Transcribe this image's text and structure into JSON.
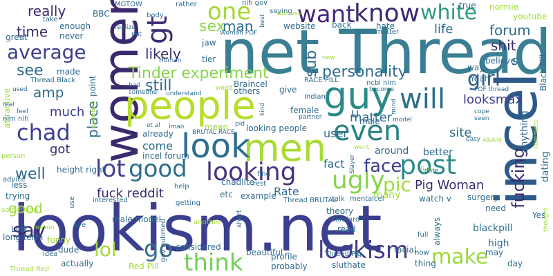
{
  "words": [
    {
      "text": "lookism.net",
      "color": "#3b3f8f"
    },
    {
      "text": "net Thread",
      "color": "#3a7f93"
    },
    {
      "text": "incel",
      "color": "#2e5a8a"
    },
    {
      "text": "women",
      "color": "#3b2a6e"
    },
    {
      "text": "people",
      "color": "#b5de2b"
    },
    {
      "text": "men",
      "color": "#a8db34"
    },
    {
      "text": "guy",
      "color": "#2a8a87"
    },
    {
      "text": "look",
      "color": "#2d6f8e"
    },
    {
      "text": "know",
      "color": "#3b2a6e"
    },
    {
      "text": "want",
      "color": "#46277a"
    },
    {
      "text": "white",
      "color": "#2f9a80"
    },
    {
      "text": "one",
      "color": "#a6d837"
    },
    {
      "text": "good",
      "color": "#2b6d8f"
    },
    {
      "text": "looking",
      "color": "#46337e"
    },
    {
      "text": "post",
      "color": "#2f8b8b"
    },
    {
      "text": "even",
      "color": "#2a8184"
    },
    {
      "text": "will",
      "color": "#2e6e8e"
    },
    {
      "text": "average",
      "color": "#3d3f8c"
    },
    {
      "text": "ugly",
      "color": "#86d549"
    },
    {
      "text": "think",
      "color": "#73ce5a"
    },
    {
      "text": "lookism",
      "color": "#423b87"
    },
    {
      "text": "make",
      "color": "#9dd93b"
    },
    {
      "text": "chad",
      "color": "#3b3f8f"
    },
    {
      "text": "lot",
      "color": "#3d3f8c"
    },
    {
      "text": "go",
      "color": "#3a6d8e"
    },
    {
      "text": "say",
      "color": "#3b2a6e"
    },
    {
      "text": "lol",
      "color": "#a2da37"
    },
    {
      "text": "girl",
      "color": "#2f5d8a"
    },
    {
      "text": "face",
      "color": "#3b3f8f"
    },
    {
      "text": "fucking",
      "color": "#3b2a6e"
    },
    {
      "text": "Tinder experiment",
      "color": "#86d549"
    },
    {
      "text": "personality",
      "color": "#2f6c8e"
    },
    {
      "text": "sub",
      "color": "#2f6c8e"
    },
    {
      "text": "forum",
      "color": "#2f6c8e"
    },
    {
      "text": "shit",
      "color": "#3b2a6e"
    },
    {
      "text": "pic",
      "color": "#a0da39"
    },
    {
      "text": "sex",
      "color": "#88d64c"
    },
    {
      "text": "man",
      "color": "#2f6c8e"
    },
    {
      "text": "see",
      "color": "#2f6c8e"
    },
    {
      "text": "amp",
      "color": "#2f6c8e"
    },
    {
      "text": "time",
      "color": "#3b2a6e"
    },
    {
      "text": "really",
      "color": "#3b2a6e"
    },
    {
      "text": "gt",
      "color": "#3b2a6e"
    },
    {
      "text": "still",
      "color": "#2f6c8e"
    },
    {
      "text": "likely",
      "color": "#3b2a6e"
    },
    {
      "text": "place",
      "color": "#2f6c8e"
    },
    {
      "text": "much",
      "color": "#3b3f8f"
    },
    {
      "text": "well",
      "color": "#2f6c8e"
    },
    {
      "text": "got",
      "color": "#3b2a6e"
    },
    {
      "text": "matter",
      "color": "#2f6c8e"
    },
    {
      "text": "life",
      "color": "#2f6c8e"
    },
    {
      "text": "looksmax",
      "color": "#3b3f8f"
    },
    {
      "text": "Pig Woman",
      "color": "#3b2a6e"
    },
    {
      "text": "fuck reddit",
      "color": "#3b2a6e"
    },
    {
      "text": "come",
      "color": "#2f6c8e"
    },
    {
      "text": "user",
      "color": "#2f6c8e"
    },
    {
      "text": "site",
      "color": "#2f6c8e"
    },
    {
      "text": "fact",
      "color": "#2f6c8e"
    },
    {
      "text": "s",
      "color": "#2f6c8e"
    },
    {
      "text": "u",
      "color": "#2f6c8e"
    },
    {
      "text": "Rate",
      "color": "#2f6c8e"
    },
    {
      "text": "good",
      "color": "#a0da39"
    },
    {
      "text": "high",
      "color": "#2f6c8e"
    },
    {
      "text": "blackpill",
      "color": "#2f6c8e"
    },
    {
      "text": "dating",
      "color": "#2f6c8e"
    },
    {
      "text": "anything",
      "color": "#2f6c8e"
    },
    {
      "text": "many",
      "color": "#a0da39"
    },
    {
      "text": "around",
      "color": "#2f6c8e"
    },
    {
      "text": "better",
      "color": "#2f6c8e"
    },
    {
      "text": "looking people",
      "color": "#2f6c8e"
    },
    {
      "text": "female",
      "color": "#2f6c8e"
    },
    {
      "text": "male",
      "color": "#2f6c8e"
    },
    {
      "text": "give",
      "color": "#2f6c8e"
    },
    {
      "text": "already",
      "color": "#2f6c8e"
    },
    {
      "text": "mean",
      "color": "#a0da39"
    },
    {
      "text": "height right",
      "color": "#2f6c8e"
    },
    {
      "text": "incel forum",
      "color": "#2f6c8e"
    },
    {
      "text": "etc",
      "color": "#2f6c8e"
    },
    {
      "text": "example",
      "color": "#2f6c8e"
    },
    {
      "text": "chadlite",
      "color": "#2f6c8e"
    },
    {
      "text": "theory",
      "color": "#2f6c8e"
    },
    {
      "text": "watch v",
      "color": "#2f6c8e"
    },
    {
      "text": "need",
      "color": "#2f6c8e"
    },
    {
      "text": "day",
      "color": "#2f6c8e"
    },
    {
      "text": "sluthate",
      "color": "#2f6c8e"
    },
    {
      "text": "thing",
      "color": "#2f6c8e"
    },
    {
      "text": "probably",
      "color": "#2f6c8e"
    },
    {
      "text": "actually",
      "color": "#2f6c8e"
    },
    {
      "text": "Red Pill",
      "color": "#a0da39"
    },
    {
      "text": "dude",
      "color": "#2f6c8e"
    },
    {
      "text": "beautiful",
      "color": "#2f6c8e"
    },
    {
      "text": "facial",
      "color": "#2f6c8e"
    },
    {
      "text": "always",
      "color": "#2f6c8e"
    },
    {
      "text": "read",
      "color": "#2f6c8e"
    },
    {
      "text": "Link",
      "color": "#2f6c8e"
    },
    {
      "text": "funny",
      "color": "#a0da39"
    },
    {
      "text": "long term",
      "color": "#2f6c8e"
    },
    {
      "text": "less",
      "color": "#2f6c8e"
    },
    {
      "text": "trying",
      "color": "#2f6c8e"
    },
    {
      "text": "advice",
      "color": "#2f6c8e"
    },
    {
      "text": "made",
      "color": "#2f6c8e"
    },
    {
      "text": "enough",
      "color": "#2f6c8e"
    },
    {
      "text": "never",
      "color": "#2f6c8e"
    },
    {
      "text": "great",
      "color": "#2f6c8e"
    },
    {
      "text": "take",
      "color": "#2f6c8e"
    },
    {
      "text": "BBC",
      "color": "#2f6c8e"
    },
    {
      "text": "MGTOW",
      "color": "#2f6c8e"
    },
    {
      "text": "body",
      "color": "#2f6c8e"
    },
    {
      "text": "rather",
      "color": "#2f6c8e"
    },
    {
      "text": "nih gov",
      "color": "#2f6c8e"
    },
    {
      "text": "saying",
      "color": "#2f6c8e"
    },
    {
      "text": "true",
      "color": "#2f6c8e"
    },
    {
      "text": "normie",
      "color": "#a0da39"
    },
    {
      "text": "youtube",
      "color": "#a0da39"
    },
    {
      "text": "Black Pill",
      "color": "#2f6c8e"
    },
    {
      "text": "believe",
      "color": "#2f6c8e"
    },
    {
      "text": "way",
      "color": "#2f6c8e"
    },
    {
      "text": "Yeah",
      "color": "#2f6c8e"
    },
    {
      "text": "website",
      "color": "#2f6c8e"
    },
    {
      "text": "back",
      "color": "#2f6c8e"
    },
    {
      "text": "hate",
      "color": "#2f6c8e"
    },
    {
      "text": "looks matter",
      "color": "#2f6c8e"
    },
    {
      "text": "jaw",
      "color": "#2f6c8e"
    },
    {
      "text": "tier",
      "color": "#2f6c8e"
    },
    {
      "text": "Braincel",
      "color": "#2f6c8e"
    },
    {
      "text": "others",
      "color": "#2f6c8e"
    },
    {
      "text": "RACE PILL",
      "color": "#2f6c8e"
    },
    {
      "text": "ncbi nlm",
      "color": "#2f6c8e"
    },
    {
      "text": "Indian",
      "color": "#2f6c8e"
    },
    {
      "text": "point",
      "color": "#2f6c8e"
    },
    {
      "text": "Thread Black",
      "color": "#2f6c8e"
    },
    {
      "text": "attractive",
      "color": "#a0da39"
    },
    {
      "text": "nlm nih",
      "color": "#2f6c8e"
    },
    {
      "text": "person",
      "color": "#a0da39"
    },
    {
      "text": "something",
      "color": "#a0da39"
    },
    {
      "text": "Thread Red",
      "color": "#a0da39"
    },
    {
      "text": "idea",
      "color": "#2f6c8e"
    },
    {
      "text": "gov pubmed",
      "color": "#2f6c8e"
    },
    {
      "text": "considered",
      "color": "#2f6c8e"
    },
    {
      "text": "profile",
      "color": "#2f6c8e"
    },
    {
      "text": "talk",
      "color": "#2f6c8e"
    },
    {
      "text": "mentalcel",
      "color": "#2f6c8e"
    },
    {
      "text": "Thread BRUTAL",
      "color": "#2f6c8e"
    },
    {
      "text": "standard",
      "color": "#2f6c8e"
    },
    {
      "text": "Thread Pig",
      "color": "#2f6c8e"
    },
    {
      "text": "surgery",
      "color": "#2f6c8e"
    },
    {
      "text": "may",
      "color": "#2f6c8e"
    },
    {
      "text": "Yes",
      "color": "#2f6c8e"
    },
    {
      "text": "now",
      "color": "#2f6c8e"
    },
    {
      "text": "full",
      "color": "#2f6c8e"
    },
    {
      "text": "another",
      "color": "#a0da39"
    },
    {
      "text": "short",
      "color": "#2f6c8e"
    },
    {
      "text": "getting",
      "color": "#2f6c8e"
    },
    {
      "text": "interested",
      "color": "#2f6c8e"
    },
    {
      "text": "male model",
      "color": "#2f6c8e"
    },
    {
      "text": "eye",
      "color": "#2f6c8e"
    },
    {
      "text": "use",
      "color": "#2f6c8e"
    },
    {
      "text": "reason",
      "color": "#a0da39"
    },
    {
      "text": "help",
      "color": "#2f6c8e"
    },
    {
      "text": "rest",
      "color": "#2f6c8e"
    },
    {
      "text": "find",
      "color": "#2f6c8e"
    },
    {
      "text": "et al",
      "color": "#2f6c8e"
    },
    {
      "text": "lmao",
      "color": "#2f6c8e"
    },
    {
      "text": "BRUTAL RACE",
      "color": "#2f6c8e"
    },
    {
      "text": "pid",
      "color": "#2f6c8e"
    },
    {
      "text": "real",
      "color": "#2f6c8e"
    },
    {
      "text": "feel",
      "color": "#2f6c8e"
    },
    {
      "text": "member",
      "color": "#a0da39"
    },
    {
      "text": "someone",
      "color": "#2f6c8e"
    },
    {
      "text": "understand",
      "color": "#2f6c8e"
    },
    {
      "text": "world",
      "color": "#a0da39"
    },
    {
      "text": "bad",
      "color": "#2f6c8e"
    },
    {
      "text": "Human",
      "color": "#2f6c8e"
    },
    {
      "text": "realize",
      "color": "#2f6c8e"
    },
    {
      "text": "put",
      "color": "#2f6c8e"
    },
    {
      "text": "Woman POF",
      "color": "#2f6c8e"
    },
    {
      "text": "best",
      "color": "#2f6c8e"
    },
    {
      "text": "success",
      "color": "#a0da39"
    },
    {
      "text": "new",
      "color": "#a0da39"
    },
    {
      "text": "used",
      "color": "#2f6c8e"
    },
    {
      "text": "become",
      "color": "#2f6c8e"
    },
    {
      "text": "POF thread",
      "color": "#2f6c8e"
    },
    {
      "text": "cope",
      "color": "#2f6c8e"
    },
    {
      "text": "seen",
      "color": "#2f6c8e"
    },
    {
      "text": "model",
      "color": "#2f6c8e"
    },
    {
      "text": "mind",
      "color": "#2f6c8e"
    },
    {
      "text": "kind",
      "color": "#2f6c8e"
    },
    {
      "text": "partner",
      "color": "#2f6c8e"
    },
    {
      "text": "easy",
      "color": "#2f6c8e"
    },
    {
      "text": "ASAIN",
      "color": "#a0da39"
    },
    {
      "text": "comment",
      "color": "#a0da39"
    },
    {
      "text": "first",
      "color": "#a0da39"
    },
    {
      "text": "went",
      "color": "#a0da39"
    },
    {
      "text": "date",
      "color": "#2f6c8e"
    },
    {
      "text": "Slayer",
      "color": "#2f6c8e"
    },
    {
      "text": "thought",
      "color": "#a0da39"
    }
  ]
}
